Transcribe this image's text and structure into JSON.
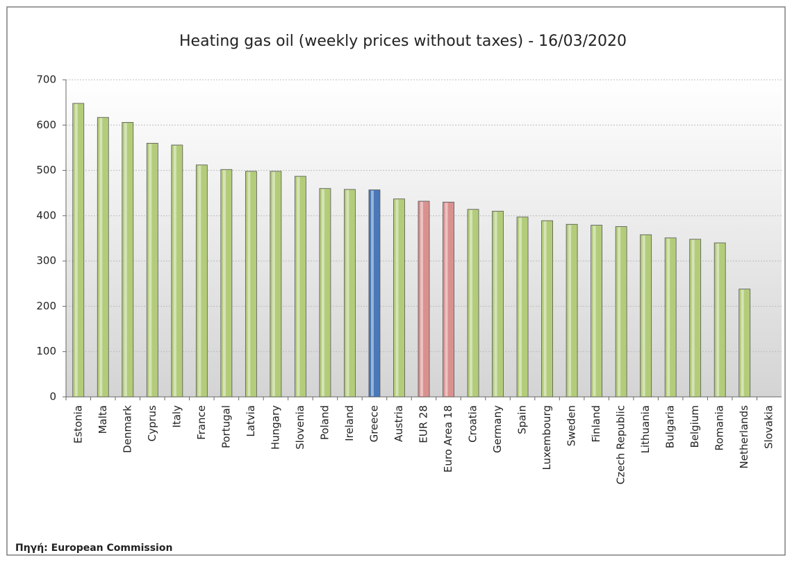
{
  "chart_data": {
    "type": "bar",
    "title": "Heating gas oil (weekly prices without  taxes) - 16/03/2020",
    "source": "Πηγή: European Commission",
    "categories": [
      "Estonia",
      "Malta",
      "Denmark",
      "Cyprus",
      "Italy",
      "France",
      "Portugal",
      "Latvia",
      "Hungary",
      "Slovenia",
      "Poland",
      "Ireland",
      "Greece",
      "Austria",
      "EUR 28",
      "Euro Area 18",
      "Croatia",
      "Germany",
      "Spain",
      "Luxembourg",
      "Sweden",
      "Finland",
      "Czech Republic",
      "Lithuania",
      "Bulgaria",
      "Belgium",
      "Romania",
      "Netherlands",
      "Slovakia"
    ],
    "values": [
      648,
      617,
      606,
      560,
      556,
      512,
      502,
      498,
      498,
      487,
      460,
      458,
      457,
      437,
      432,
      430,
      414,
      410,
      397,
      389,
      381,
      379,
      376,
      358,
      351,
      348,
      340,
      238,
      null
    ],
    "colors": [
      "#b3cc7a",
      "#b3cc7a",
      "#b3cc7a",
      "#b3cc7a",
      "#b3cc7a",
      "#b3cc7a",
      "#b3cc7a",
      "#b3cc7a",
      "#b3cc7a",
      "#b3cc7a",
      "#b3cc7a",
      "#b3cc7a",
      "#4a78b8",
      "#b3cc7a",
      "#d99190",
      "#d99190",
      "#b3cc7a",
      "#b3cc7a",
      "#b3cc7a",
      "#b3cc7a",
      "#b3cc7a",
      "#b3cc7a",
      "#b3cc7a",
      "#b3cc7a",
      "#b3cc7a",
      "#b3cc7a",
      "#b3cc7a",
      "#b3cc7a",
      "#b3cc7a"
    ],
    "ylim": [
      0,
      700
    ],
    "yticks": [
      0,
      100,
      200,
      300,
      400,
      500,
      600,
      700
    ],
    "grid": true
  }
}
